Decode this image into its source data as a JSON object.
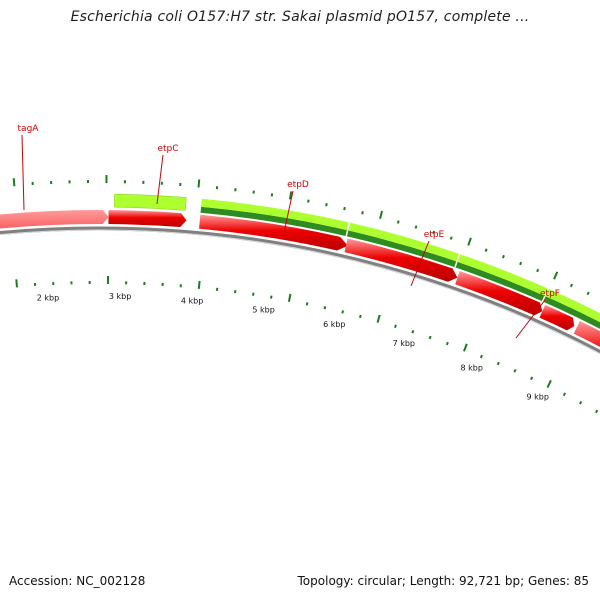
{
  "title": "Escherichia coli O157:H7 str. Sakai plasmid pO157, complete ...",
  "footer": {
    "accession_label": "Accession: NC_002128",
    "topology_label": "Topology: circular",
    "length_label": "Length: 92,721 bp",
    "genes_label": "Genes: 85"
  },
  "genes": [
    {
      "name": "tagA",
      "strand": "minus",
      "color": "red"
    },
    {
      "name": "etpC",
      "strand": "plus",
      "color": "lightgreen"
    },
    {
      "name": "etpD",
      "strand": "plus",
      "color": "darkgreen"
    },
    {
      "name": "etpE",
      "strand": "plus",
      "color": "darkgreen"
    },
    {
      "name": "etpF",
      "strand": "plus",
      "color": "darkgreen"
    }
  ],
  "scale": {
    "tick_labels": [
      "2 kbp",
      "3 kbp",
      "4 kbp",
      "5 kbp",
      "6 kbp",
      "7 kbp",
      "8 kbp",
      "9 kbp"
    ]
  },
  "colors": {
    "title": "#1f1f1f",
    "gene_label": "#cc0000",
    "gene_minus": "#ee0000",
    "gene_plus_light": "#adff2f",
    "gene_plus_dark": "#2e8b22",
    "tick": "#1e7a1e",
    "backbone": "#808080"
  }
}
